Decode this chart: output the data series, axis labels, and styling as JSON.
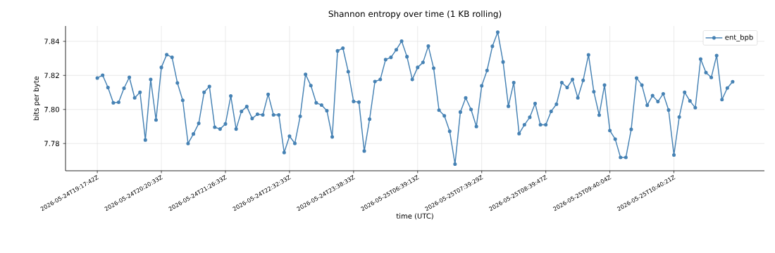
{
  "chart_data": {
    "type": "line",
    "title": "Shannon entropy over time (1 KB rolling)",
    "xlabel": "time (UTC)",
    "ylabel": "bits per byte",
    "categories": [
      "2026-05-24T19:17:42Z",
      null,
      null,
      null,
      null,
      null,
      null,
      null,
      null,
      null,
      null,
      null,
      "2026-05-24T20:20:33Z",
      null,
      null,
      null,
      null,
      null,
      null,
      null,
      null,
      null,
      null,
      null,
      "2026-05-24T21:26:33Z",
      null,
      null,
      null,
      null,
      null,
      null,
      null,
      null,
      null,
      null,
      null,
      "2026-05-24T22:32:33Z",
      null,
      null,
      null,
      null,
      null,
      null,
      null,
      null,
      null,
      null,
      null,
      "2026-05-24T23:38:33Z",
      null,
      null,
      null,
      null,
      null,
      null,
      null,
      null,
      null,
      null,
      null,
      "2026-05-25T06:39:13Z",
      null,
      null,
      null,
      null,
      null,
      null,
      null,
      null,
      null,
      null,
      null,
      "2026-05-25T07:39:29Z",
      null,
      null,
      null,
      null,
      null,
      null,
      null,
      null,
      null,
      null,
      null,
      "2026-05-25T08:39:47Z",
      null,
      null,
      null,
      null,
      null,
      null,
      null,
      null,
      null,
      null,
      null,
      "2026-05-25T09:40:04Z",
      null,
      null,
      null,
      null,
      null,
      null,
      null,
      null,
      null,
      null,
      null,
      "2026-05-25T10:40:21Z",
      null,
      null,
      null,
      null,
      null,
      null,
      null,
      null,
      null,
      null,
      null
    ],
    "series": [
      {
        "name": "ent_bpb",
        "color": "#4682b4",
        "values": [
          7.8185,
          7.8201,
          7.8129,
          7.8039,
          7.8042,
          7.8125,
          7.8189,
          7.8068,
          7.8101,
          7.7821,
          7.8176,
          7.7938,
          7.8247,
          7.8322,
          7.8306,
          7.8156,
          7.8054,
          7.78,
          7.7856,
          7.7918,
          7.8101,
          7.8135,
          7.7896,
          7.7885,
          7.7915,
          7.8079,
          7.7885,
          7.7989,
          7.8017,
          7.7947,
          7.7972,
          7.7968,
          7.8089,
          7.7968,
          7.7968,
          7.7747,
          7.7843,
          7.7801,
          7.796,
          7.8206,
          7.814,
          7.8039,
          7.8026,
          7.7993,
          7.7839,
          7.8344,
          7.836,
          7.8222,
          7.8047,
          7.8043,
          7.7756,
          7.7943,
          7.8164,
          7.8176,
          7.8293,
          7.8306,
          7.8351,
          7.8401,
          7.831,
          7.8176,
          7.8247,
          7.8276,
          7.8372,
          7.8242,
          7.7996,
          7.7963,
          7.7872,
          7.7679,
          7.7985,
          7.8068,
          7.8,
          7.79,
          7.8139,
          7.8229,
          7.8371,
          7.8454,
          7.8279,
          7.8019,
          7.8158,
          7.7858,
          7.791,
          7.7954,
          7.8035,
          7.791,
          7.791,
          7.7989,
          7.8031,
          7.8158,
          7.8129,
          7.8176,
          7.8068,
          7.8171,
          7.8321,
          7.8104,
          7.7967,
          7.8143,
          7.7876,
          7.7826,
          7.7718,
          7.7718,
          7.7883,
          7.8185,
          7.8143,
          7.8025,
          7.8081,
          7.8046,
          7.8092,
          7.7997,
          7.7733,
          7.7956,
          7.8101,
          7.805,
          7.801,
          7.8296,
          7.8217,
          7.8188,
          7.8317,
          7.8058,
          7.8126,
          7.8163
        ]
      }
    ],
    "ylim": [
      7.764,
      7.849
    ],
    "yticks": [
      7.78,
      {
        "value": 7.8,
        "label": "7.80"
      },
      7.82,
      7.84
    ],
    "grid": true,
    "legend": "top right",
    "marker": "circle",
    "line_style": "solid"
  }
}
